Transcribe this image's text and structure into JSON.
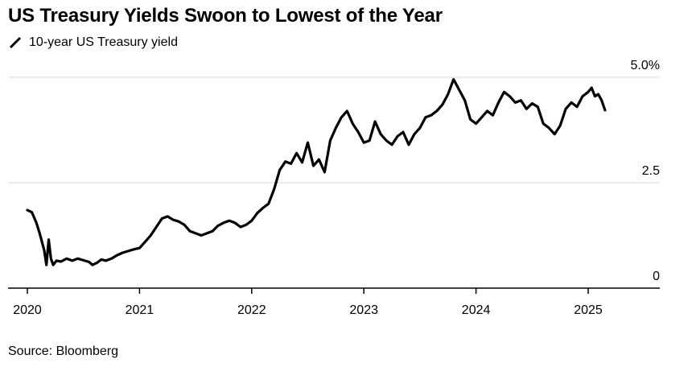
{
  "title": "US Treasury Yields Swoon to Lowest of the Year",
  "source": "Source: Bloomberg",
  "chart_data": {
    "type": "line",
    "title": "US Treasury Yields Swoon to Lowest of the Year",
    "xlabel": "",
    "ylabel": "",
    "legend": "top-left",
    "grid": true,
    "line_color": "#000000",
    "grid_color": "#d9d9d9",
    "xlim": [
      2020,
      2025.65
    ],
    "ylim": [
      0,
      5.0
    ],
    "x_ticks": [
      2020,
      2021,
      2022,
      2023,
      2024,
      2025
    ],
    "x_tick_labels": [
      "2020",
      "2021",
      "2022",
      "2023",
      "2024",
      "2025"
    ],
    "y_ticks": [
      0,
      2.5,
      5.0
    ],
    "y_tick_labels": [
      "0",
      "2.5",
      "5.0%"
    ],
    "series": [
      {
        "name": "10-year US Treasury yield",
        "x": [
          2020.0,
          2020.04,
          2020.08,
          2020.11,
          2020.15,
          2020.17,
          2020.19,
          2020.21,
          2020.23,
          2020.26,
          2020.3,
          2020.35,
          2020.4,
          2020.45,
          2020.5,
          2020.55,
          2020.58,
          2020.62,
          2020.66,
          2020.7,
          2020.75,
          2020.8,
          2020.85,
          2020.9,
          2020.95,
          2021.0,
          2021.05,
          2021.1,
          2021.15,
          2021.2,
          2021.25,
          2021.3,
          2021.35,
          2021.4,
          2021.45,
          2021.5,
          2021.55,
          2021.6,
          2021.65,
          2021.7,
          2021.75,
          2021.8,
          2021.85,
          2021.9,
          2021.95,
          2022.0,
          2022.05,
          2022.1,
          2022.15,
          2022.2,
          2022.25,
          2022.3,
          2022.35,
          2022.4,
          2022.45,
          2022.5,
          2022.55,
          2022.6,
          2022.65,
          2022.7,
          2022.75,
          2022.8,
          2022.85,
          2022.9,
          2022.95,
          2023.0,
          2023.05,
          2023.1,
          2023.15,
          2023.2,
          2023.25,
          2023.3,
          2023.35,
          2023.4,
          2023.45,
          2023.5,
          2023.55,
          2023.6,
          2023.65,
          2023.7,
          2023.75,
          2023.8,
          2023.85,
          2023.9,
          2023.95,
          2024.0,
          2024.05,
          2024.1,
          2024.15,
          2024.2,
          2024.25,
          2024.3,
          2024.35,
          2024.4,
          2024.45,
          2024.5,
          2024.55,
          2024.6,
          2024.65,
          2024.7,
          2024.75,
          2024.8,
          2024.85,
          2024.9,
          2024.95,
          2025.0,
          2025.03,
          2025.06,
          2025.09,
          2025.12,
          2025.15
        ],
        "y": [
          1.85,
          1.8,
          1.55,
          1.3,
          0.9,
          0.55,
          1.15,
          0.7,
          0.55,
          0.65,
          0.63,
          0.7,
          0.65,
          0.7,
          0.66,
          0.62,
          0.55,
          0.6,
          0.68,
          0.65,
          0.7,
          0.78,
          0.84,
          0.88,
          0.92,
          0.95,
          1.1,
          1.25,
          1.45,
          1.65,
          1.7,
          1.62,
          1.58,
          1.5,
          1.35,
          1.3,
          1.25,
          1.3,
          1.35,
          1.48,
          1.55,
          1.6,
          1.55,
          1.45,
          1.5,
          1.6,
          1.78,
          1.9,
          2.0,
          2.35,
          2.8,
          3.0,
          2.95,
          3.2,
          2.98,
          3.45,
          2.9,
          3.05,
          2.75,
          3.5,
          3.8,
          4.05,
          4.2,
          3.9,
          3.7,
          3.45,
          3.5,
          3.95,
          3.65,
          3.5,
          3.4,
          3.6,
          3.7,
          3.4,
          3.65,
          3.8,
          4.05,
          4.1,
          4.2,
          4.35,
          4.6,
          4.95,
          4.7,
          4.45,
          4.0,
          3.9,
          4.05,
          4.2,
          4.1,
          4.4,
          4.65,
          4.55,
          4.4,
          4.45,
          4.25,
          4.38,
          4.3,
          3.9,
          3.8,
          3.65,
          3.85,
          4.25,
          4.4,
          4.3,
          4.55,
          4.65,
          4.75,
          4.55,
          4.6,
          4.45,
          4.22
        ]
      }
    ]
  }
}
